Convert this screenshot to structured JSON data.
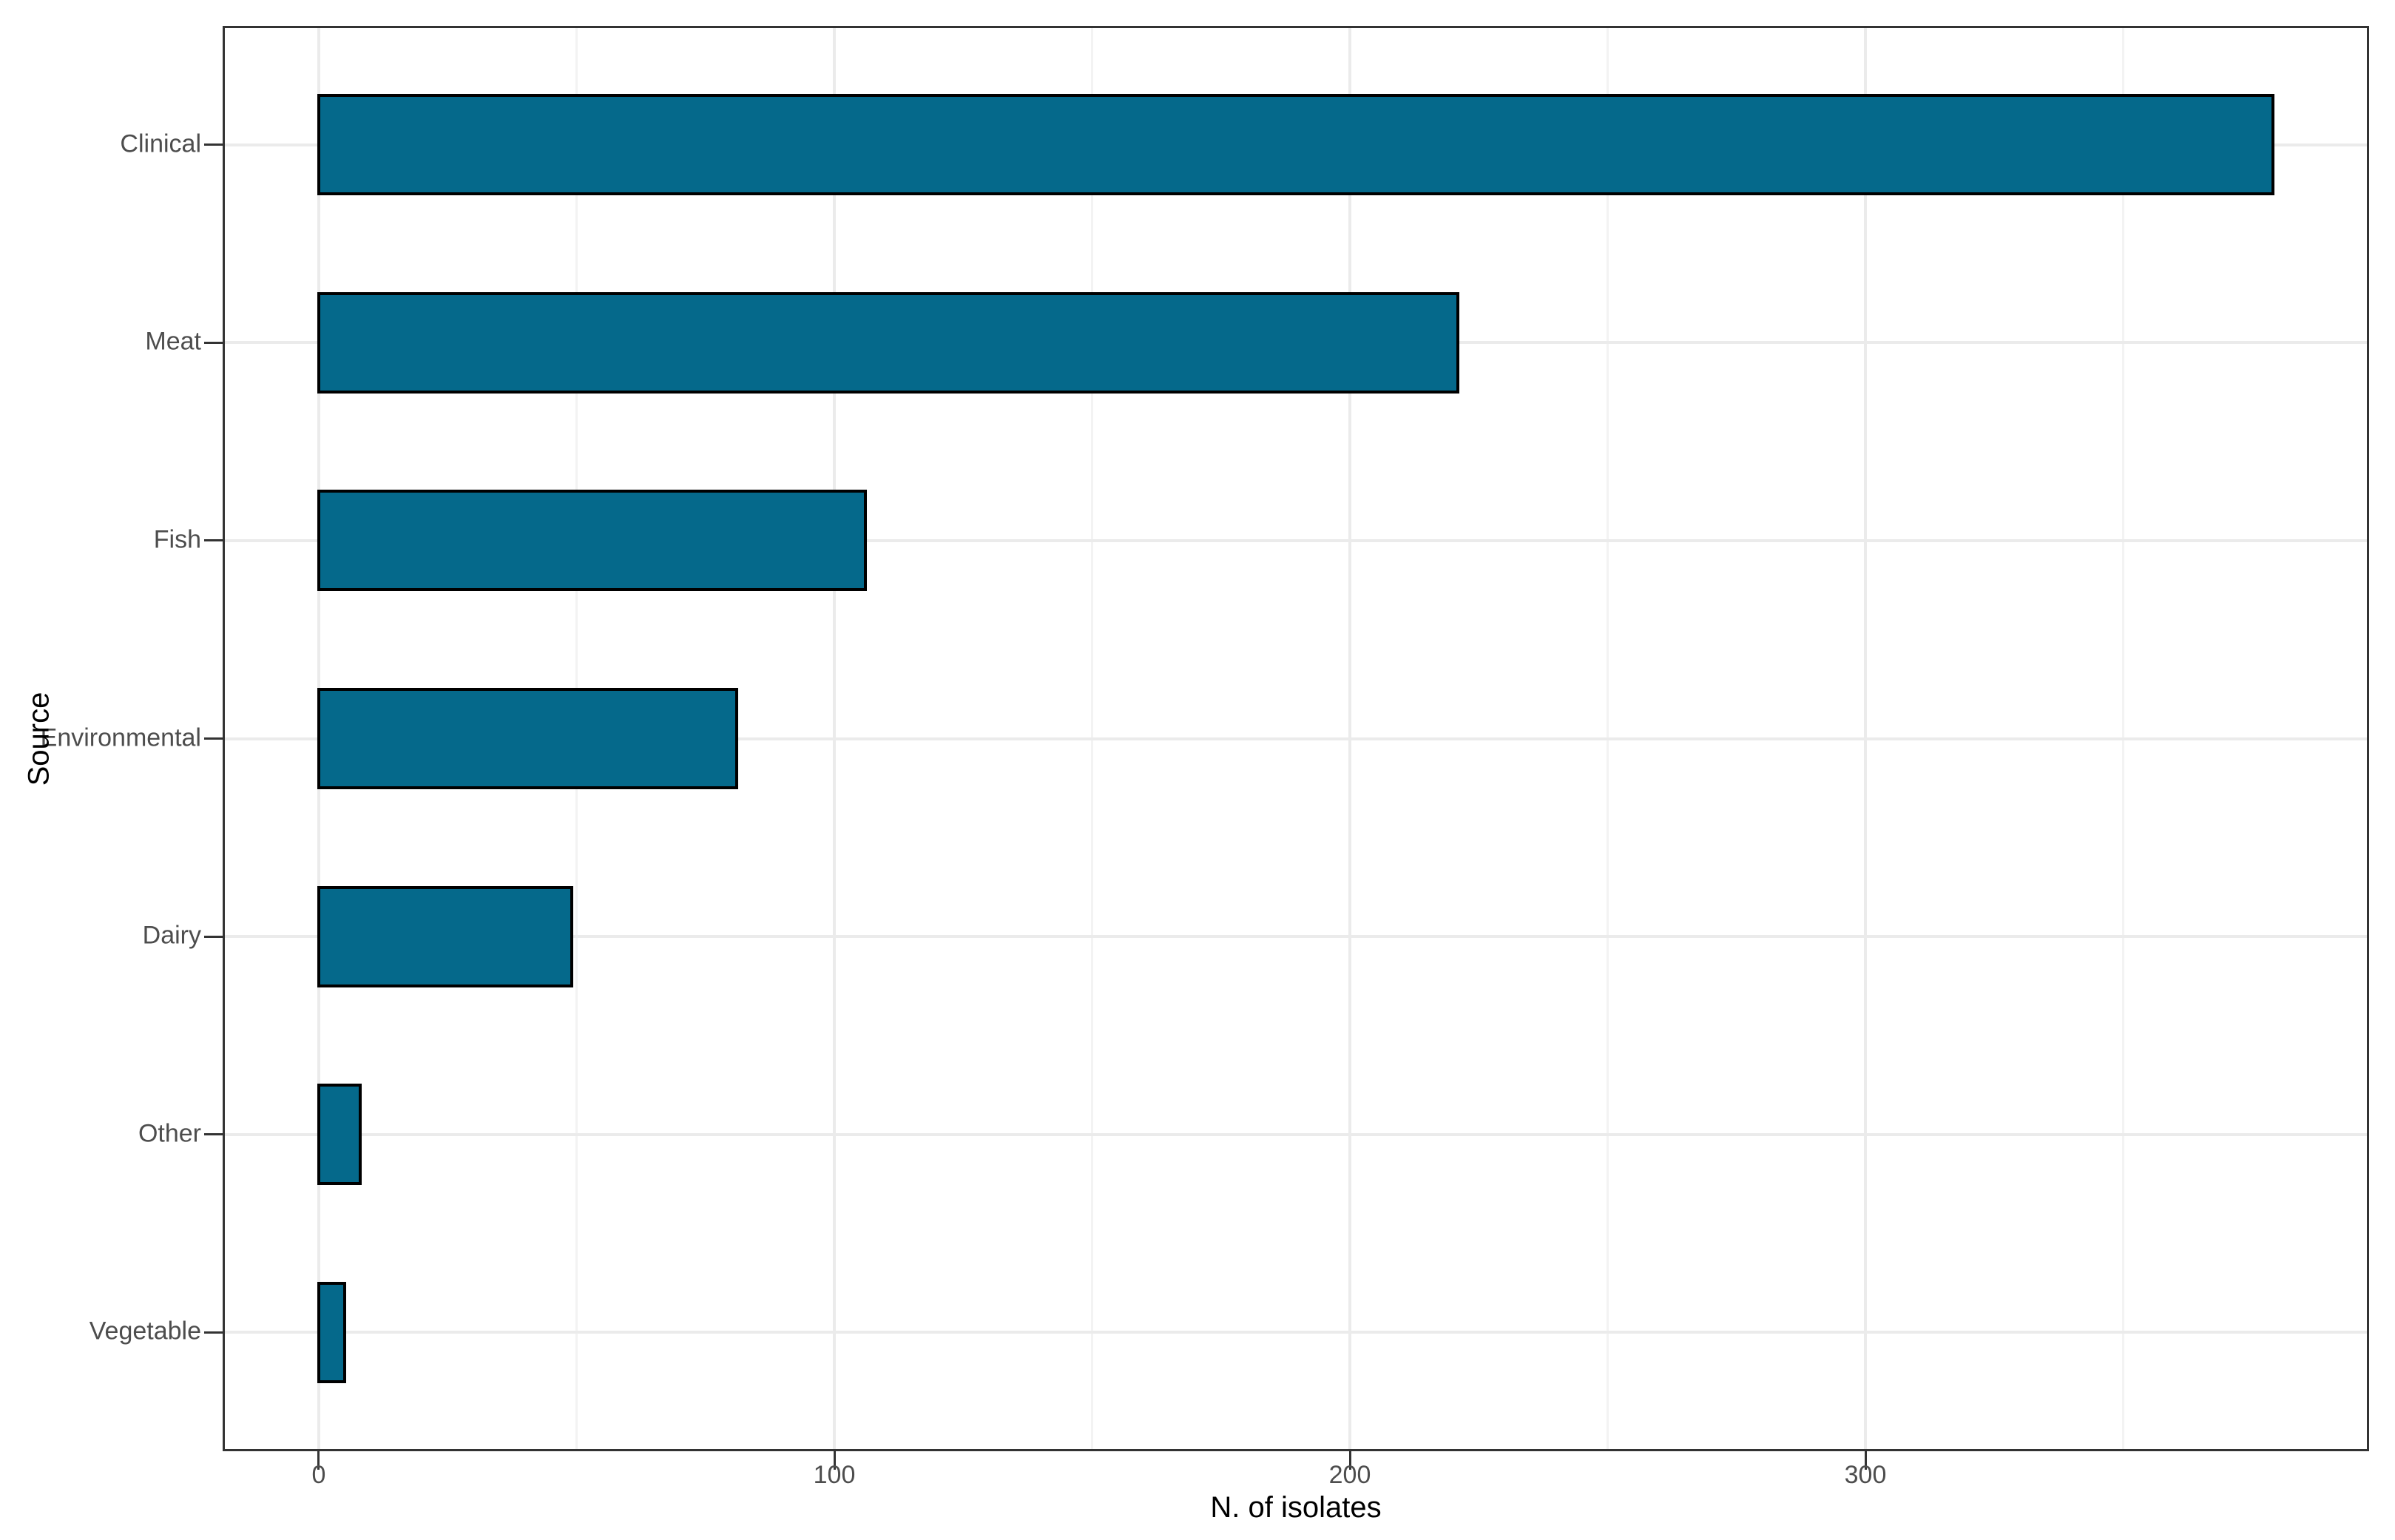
{
  "chart_data": {
    "type": "bar",
    "orientation": "horizontal",
    "title": "",
    "xlabel": "N. of isolates",
    "ylabel": "Source",
    "categories": [
      "Clinical",
      "Meat",
      "Fish",
      "Environmental",
      "Dairy",
      "Other",
      "Vegetable"
    ],
    "values": [
      379,
      221,
      106,
      81,
      49,
      8,
      5
    ],
    "x_major_ticks": [
      0,
      100,
      200,
      300
    ],
    "x_tick_labels": [
      "0",
      "100",
      "200",
      "300"
    ],
    "x_minor_ticks": [
      50,
      150,
      250,
      350
    ],
    "xlim_data": [
      0,
      379
    ],
    "xlim_visible": [
      -18.65,
      397.7
    ],
    "grid": "vertical major+minor, horizontal major per category",
    "legend": "none",
    "bar_width_fraction": 0.512,
    "colors": {
      "bar_fill": "#05698B",
      "bar_stroke": "#000000",
      "axis_text": "#4D4D4D",
      "axis_title": "#000000",
      "panel_border": "#333333",
      "tick_mark": "#333333",
      "grid_major": "#EBEBEB",
      "grid_minor": "#F3F3F3",
      "background": "#FFFFFF"
    }
  }
}
